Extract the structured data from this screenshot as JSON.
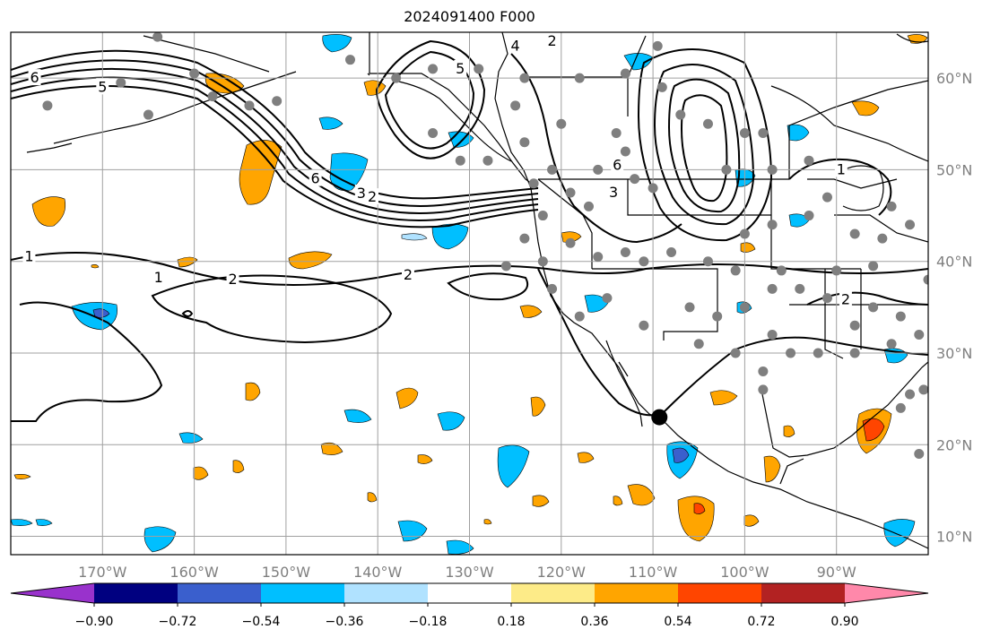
{
  "title": "2024091400 F000",
  "map": {
    "lon_range": [
      -180,
      -80
    ],
    "lat_range": [
      8,
      65
    ],
    "lon_ticks": [
      {
        "value": -170,
        "label": "170°W"
      },
      {
        "value": -160,
        "label": "160°W"
      },
      {
        "value": -150,
        "label": "150°W"
      },
      {
        "value": -140,
        "label": "140°W"
      },
      {
        "value": -130,
        "label": "130°W"
      },
      {
        "value": -120,
        "label": "120°W"
      },
      {
        "value": -110,
        "label": "110°W"
      },
      {
        "value": -100,
        "label": "100°W"
      },
      {
        "value": -90,
        "label": "90°W"
      }
    ],
    "lat_ticks": [
      {
        "value": 10,
        "label": "10°N"
      },
      {
        "value": 20,
        "label": "20°N"
      },
      {
        "value": 30,
        "label": "30°N"
      },
      {
        "value": 40,
        "label": "40°N"
      },
      {
        "value": 50,
        "label": "50°N"
      },
      {
        "value": 60,
        "label": "60°N"
      }
    ],
    "grid": true,
    "tick_color": "#7f7f7f",
    "marker": {
      "lon": -109.3,
      "lat": 23.0,
      "color": "#000000"
    },
    "contour_labels": [
      {
        "text": "6",
        "lon": -177.4,
        "lat": 60.0
      },
      {
        "text": "5",
        "lon": -170.0,
        "lat": 59.0
      },
      {
        "text": "6",
        "lon": -146.8,
        "lat": 49.0
      },
      {
        "text": "3",
        "lon": -141.8,
        "lat": 47.4
      },
      {
        "text": "2",
        "lon": -140.6,
        "lat": 47.0
      },
      {
        "text": "1",
        "lon": -178.0,
        "lat": 40.5
      },
      {
        "text": "1",
        "lon": -163.9,
        "lat": 38.2
      },
      {
        "text": "2",
        "lon": -155.8,
        "lat": 38.0
      },
      {
        "text": "2",
        "lon": -136.7,
        "lat": 38.5
      },
      {
        "text": "3",
        "lon": -114.3,
        "lat": 47.5
      },
      {
        "text": "6",
        "lon": -113.9,
        "lat": 50.5
      },
      {
        "text": "1",
        "lon": -89.5,
        "lat": 50.0
      },
      {
        "text": "2",
        "lon": -89.0,
        "lat": 35.8
      },
      {
        "text": "5",
        "lon": -131.0,
        "lat": 61.0
      },
      {
        "text": "4",
        "lon": -125.0,
        "lat": 63.5
      },
      {
        "text": "2",
        "lon": -121.0,
        "lat": 64.0
      }
    ],
    "stations": [
      [
        -164,
        64.5
      ],
      [
        -168,
        59.5
      ],
      [
        -160,
        60.5
      ],
      [
        -158,
        58
      ],
      [
        -154,
        57
      ],
      [
        -151,
        57.5
      ],
      [
        -165,
        56
      ],
      [
        -176,
        57
      ],
      [
        -143,
        62
      ],
      [
        -138,
        60
      ],
      [
        -134,
        61
      ],
      [
        -129,
        61
      ],
      [
        -124,
        60
      ],
      [
        -118,
        60
      ],
      [
        -113,
        60.5
      ],
      [
        -109,
        59
      ],
      [
        -107,
        56
      ],
      [
        -104,
        55
      ],
      [
        -100,
        54
      ],
      [
        -102,
        50
      ],
      [
        -97,
        50
      ],
      [
        -93,
        51
      ],
      [
        -98,
        54
      ],
      [
        -114,
        54
      ],
      [
        -113,
        52
      ],
      [
        -116,
        50
      ],
      [
        -112,
        49
      ],
      [
        -110,
        48
      ],
      [
        -119,
        47.5
      ],
      [
        -123,
        48.5
      ],
      [
        -124,
        53
      ],
      [
        -121,
        50
      ],
      [
        -117,
        46
      ],
      [
        -122,
        45
      ],
      [
        -124,
        42.5
      ],
      [
        -126,
        39.5
      ],
      [
        -119,
        42
      ],
      [
        -116,
        40.5
      ],
      [
        -113,
        41
      ],
      [
        -111,
        40
      ],
      [
        -108,
        41
      ],
      [
        -104,
        40
      ],
      [
        -100,
        43
      ],
      [
        -97,
        44
      ],
      [
        -93,
        45
      ],
      [
        -91,
        47
      ],
      [
        -88,
        43
      ],
      [
        -85,
        42.5
      ],
      [
        -84,
        46
      ],
      [
        -82,
        44
      ],
      [
        -86,
        39.5
      ],
      [
        -90,
        39
      ],
      [
        -96,
        39
      ],
      [
        -101,
        39
      ],
      [
        -97,
        37
      ],
      [
        -94,
        37
      ],
      [
        -91,
        36
      ],
      [
        -88,
        33
      ],
      [
        -86,
        35
      ],
      [
        -83,
        34
      ],
      [
        -80,
        38
      ],
      [
        -81,
        32
      ],
      [
        -84,
        31
      ],
      [
        -88,
        30
      ],
      [
        -92,
        30
      ],
      [
        -95,
        30
      ],
      [
        -97,
        32
      ],
      [
        -100,
        35
      ],
      [
        -103,
        34
      ],
      [
        -106,
        35
      ],
      [
        -111,
        33
      ],
      [
        -115,
        36
      ],
      [
        -118,
        34
      ],
      [
        -121,
        37
      ],
      [
        -122,
        40
      ],
      [
        -105,
        31
      ],
      [
        -101,
        30
      ],
      [
        -98,
        28
      ],
      [
        -98,
        26
      ],
      [
        -80.5,
        26
      ],
      [
        -82,
        25.5
      ],
      [
        -83,
        24
      ],
      [
        -81,
        19
      ],
      [
        -109.5,
        63.5
      ],
      [
        -134,
        54
      ],
      [
        -131,
        51
      ],
      [
        -128,
        51
      ],
      [
        -120,
        55
      ],
      [
        -125,
        57
      ]
    ]
  },
  "colorbar": {
    "colors": [
      "#9932cc",
      "#000080",
      "#3a5fcd",
      "#00bfff",
      "#b0e2ff",
      "#ffffff",
      "#fdeb88",
      "#ffa500",
      "#ff4500",
      "#b22222",
      "#ff88aa"
    ],
    "ticks": [
      "−0.90",
      "−0.72",
      "−0.54",
      "−0.36",
      "−0.18",
      "0.18",
      "0.36",
      "0.54",
      "0.72",
      "0.90"
    ]
  }
}
